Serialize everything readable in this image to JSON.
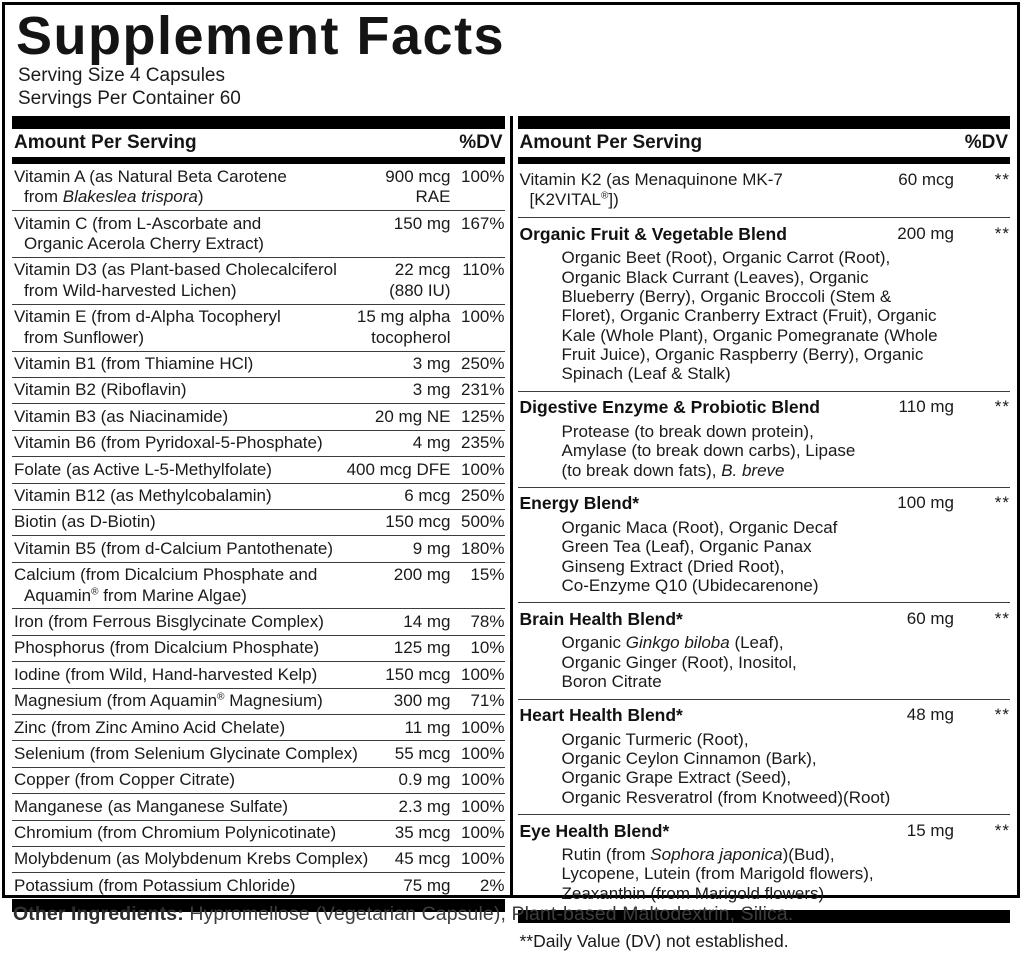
{
  "label": {
    "title": "Supplement Facts",
    "serving_size": "Serving Size 4 Capsules",
    "servings_per_container": "Servings Per Container 60",
    "column_header": {
      "amount": "Amount Per Serving",
      "dv": "%DV"
    },
    "footnote": "**Daily Value (DV) not established.",
    "other_ingredients_label": "Other Ingredients:",
    "other_ingredients_text": " Hypromellose (Vegetarian Capsule), Plant-based Maltodextrin, Silica.",
    "colors": {
      "text": "#111111",
      "rule": "#3c3c3c",
      "bar": "#000000",
      "footer_text": "#3d3d3d"
    }
  },
  "left_rows": [
    {
      "name_lines": [
        [
          "Vitamin A (as Natural Beta Carotene"
        ],
        [
          "from ",
          {
            "i": "Blakeslea trispora"
          },
          ")"
        ]
      ],
      "amount_lines": [
        "900 mcg",
        "RAE"
      ],
      "dv": "100%"
    },
    {
      "name_lines": [
        [
          "Vitamin C (from L-Ascorbate and"
        ],
        [
          "Organic Acerola Cherry Extract)"
        ]
      ],
      "amount_lines": [
        "150 mg"
      ],
      "dv": "167%"
    },
    {
      "name_lines": [
        [
          "Vitamin D3 (as Plant-based Cholecalciferol"
        ],
        [
          "from Wild-harvested Lichen)"
        ]
      ],
      "amount_lines": [
        "22 mcg",
        "(880 IU)"
      ],
      "dv": "110%"
    },
    {
      "name_lines": [
        [
          "Vitamin E (from d-Alpha Tocopheryl"
        ],
        [
          "from Sunflower)"
        ]
      ],
      "amount_lines": [
        "15 mg alpha",
        "tocopherol"
      ],
      "dv": "100%"
    },
    {
      "name_lines": [
        [
          "Vitamin B1 (from Thiamine HCl)"
        ]
      ],
      "amount_lines": [
        "3 mg"
      ],
      "dv": "250%"
    },
    {
      "name_lines": [
        [
          "Vitamin B2 (Riboflavin)"
        ]
      ],
      "amount_lines": [
        "3 mg"
      ],
      "dv": "231%"
    },
    {
      "name_lines": [
        [
          "Vitamin B3 (as Niacinamide)"
        ]
      ],
      "amount_lines": [
        "20 mg NE"
      ],
      "dv": "125%"
    },
    {
      "name_lines": [
        [
          "Vitamin B6 (from Pyridoxal-5-Phosphate)"
        ]
      ],
      "amount_lines": [
        "4 mg"
      ],
      "dv": "235%"
    },
    {
      "name_lines": [
        [
          "Folate (as Active L-5-Methylfolate)"
        ]
      ],
      "amount_lines": [
        "400 mcg DFE"
      ],
      "dv": "100%"
    },
    {
      "name_lines": [
        [
          "Vitamin B12 (as Methylcobalamin)"
        ]
      ],
      "amount_lines": [
        "6 mcg"
      ],
      "dv": "250%"
    },
    {
      "name_lines": [
        [
          "Biotin (as D-Biotin)"
        ]
      ],
      "amount_lines": [
        "150 mcg"
      ],
      "dv": "500%"
    },
    {
      "name_lines": [
        [
          "Vitamin B5 (from d-Calcium Pantothenate)"
        ]
      ],
      "amount_lines": [
        "9 mg"
      ],
      "dv": "180%"
    },
    {
      "name_lines": [
        [
          "Calcium (from Dicalcium Phosphate and"
        ],
        [
          "Aquamin",
          {
            "sup": "®"
          },
          " from Marine Algae)"
        ]
      ],
      "amount_lines": [
        "200 mg"
      ],
      "dv": "15%"
    },
    {
      "name_lines": [
        [
          "Iron (from Ferrous Bisglycinate Complex)"
        ]
      ],
      "amount_lines": [
        "14 mg"
      ],
      "dv": "78%"
    },
    {
      "name_lines": [
        [
          "Phosphorus (from Dicalcium Phosphate)"
        ]
      ],
      "amount_lines": [
        "125 mg"
      ],
      "dv": "10%"
    },
    {
      "name_lines": [
        [
          "Iodine (from Wild, Hand-harvested Kelp)"
        ]
      ],
      "amount_lines": [
        "150 mcg"
      ],
      "dv": "100%"
    },
    {
      "name_lines": [
        [
          "Magnesium (from Aquamin",
          {
            "sup": "®"
          },
          " Magnesium)"
        ]
      ],
      "amount_lines": [
        "300 mg"
      ],
      "dv": "71%"
    },
    {
      "name_lines": [
        [
          "Zinc (from Zinc Amino Acid Chelate)"
        ]
      ],
      "amount_lines": [
        "11 mg"
      ],
      "dv": "100%"
    },
    {
      "name_lines": [
        [
          "Selenium (from Selenium Glycinate Complex)"
        ]
      ],
      "amount_lines": [
        "55 mcg"
      ],
      "dv": "100%"
    },
    {
      "name_lines": [
        [
          "Copper (from Copper Citrate)"
        ]
      ],
      "amount_lines": [
        "0.9 mg"
      ],
      "dv": "100%"
    },
    {
      "name_lines": [
        [
          "Manganese (as Manganese Sulfate)"
        ]
      ],
      "amount_lines": [
        "2.3 mg"
      ],
      "dv": "100%"
    },
    {
      "name_lines": [
        [
          "Chromium (from Chromium Polynicotinate)"
        ]
      ],
      "amount_lines": [
        "35 mcg"
      ],
      "dv": "100%"
    },
    {
      "name_lines": [
        [
          "Molybdenum (as Molybdenum Krebs Complex)"
        ]
      ],
      "amount_lines": [
        "45 mcg"
      ],
      "dv": "100%"
    },
    {
      "name_lines": [
        [
          "Potassium (from Potassium Chloride)"
        ]
      ],
      "amount_lines": [
        "75 mg"
      ],
      "dv": "2%"
    }
  ],
  "right_rows": [
    {
      "name_lines": [
        [
          "Vitamin K2 (as Menaquinone MK-7"
        ],
        [
          "[K2VITAL",
          {
            "sup": "®"
          },
          "])"
        ]
      ],
      "amount_lines": [
        "60 mcg"
      ],
      "dv": "**"
    },
    {
      "bold": true,
      "name_lines": [
        [
          "Organic Fruit & Vegetable Blend"
        ]
      ],
      "amount_lines": [
        "200 mg"
      ],
      "dv": "**",
      "sub_lines": [
        [
          "Organic Beet (Root), Organic Carrot (Root),"
        ],
        [
          "Organic Black Currant (Leaves), Organic"
        ],
        [
          "Blueberry (Berry), Organic Broccoli (Stem &"
        ],
        [
          "Floret), Organic Cranberry Extract (Fruit), Organic"
        ],
        [
          "Kale (Whole Plant), Organic Pomegranate (Whole"
        ],
        [
          "Fruit Juice), Organic Raspberry (Berry), Organic"
        ],
        [
          "Spinach (Leaf & Stalk)"
        ]
      ]
    },
    {
      "bold": true,
      "name_lines": [
        [
          "Digestive Enzyme & Probiotic Blend"
        ]
      ],
      "amount_lines": [
        "110 mg"
      ],
      "dv": "**",
      "sub_lines": [
        [
          "Protease (to break down protein),"
        ],
        [
          "Amylase (to break down carbs), Lipase"
        ],
        [
          "(to break down fats), ",
          {
            "i": "B. breve"
          }
        ]
      ]
    },
    {
      "bold": true,
      "name_lines": [
        [
          "Energy Blend*"
        ]
      ],
      "amount_lines": [
        "100 mg"
      ],
      "dv": "**",
      "sub_lines": [
        [
          "Organic Maca (Root), Organic Decaf"
        ],
        [
          "Green Tea (Leaf), Organic Panax"
        ],
        [
          "Ginseng Extract (Dried Root),"
        ],
        [
          "Co-Enzyme Q10 (Ubidecarenone)"
        ]
      ]
    },
    {
      "bold": true,
      "name_lines": [
        [
          "Brain Health Blend*"
        ]
      ],
      "amount_lines": [
        "60 mg"
      ],
      "dv": "**",
      "sub_lines": [
        [
          "Organic ",
          {
            "i": "Ginkgo biloba"
          },
          " (Leaf),"
        ],
        [
          "Organic Ginger (Root), Inositol,"
        ],
        [
          "Boron Citrate"
        ]
      ]
    },
    {
      "bold": true,
      "name_lines": [
        [
          "Heart Health Blend*"
        ]
      ],
      "amount_lines": [
        "48 mg"
      ],
      "dv": "**",
      "sub_lines": [
        [
          "Organic Turmeric (Root),"
        ],
        [
          "Organic Ceylon Cinnamon (Bark),"
        ],
        [
          "Organic Grape Extract (Seed),"
        ],
        [
          "Organic Resveratrol (from Knotweed)(Root)"
        ]
      ]
    },
    {
      "bold": true,
      "name_lines": [
        [
          "Eye Health Blend*"
        ]
      ],
      "amount_lines": [
        "15 mg"
      ],
      "dv": "**",
      "sub_lines": [
        [
          "Rutin (from ",
          {
            "i": "Sophora japonica"
          },
          ")(Bud),"
        ],
        [
          "Lycopene, Lutein (from Marigold flowers),"
        ],
        [
          "Zeaxanthin (from Marigold flowers)"
        ]
      ]
    }
  ]
}
